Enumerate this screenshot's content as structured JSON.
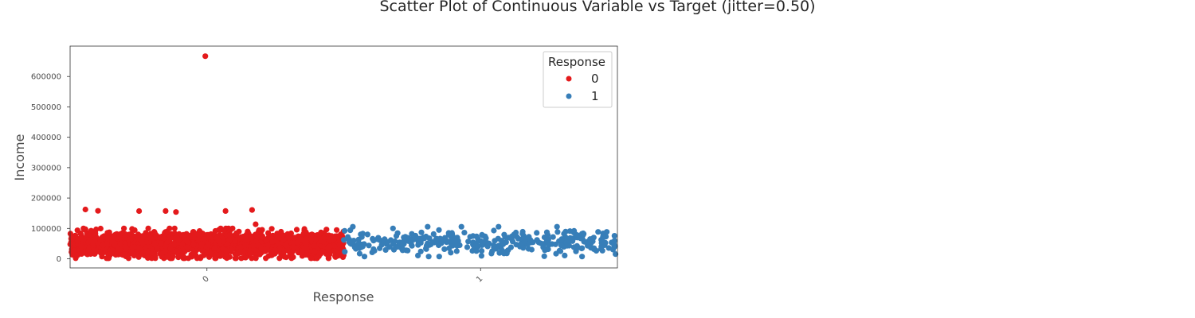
{
  "chart_data": {
    "type": "scatter",
    "title": "Scatter Plot of Continuous Variable vs Target (jitter=0.50)",
    "xlabel": "Response",
    "ylabel": "Income",
    "categories": [
      "0",
      "1"
    ],
    "xlim": [
      -0.5,
      1.5
    ],
    "ylim": [
      -30000,
      700000
    ],
    "yticks": [
      0,
      100000,
      200000,
      300000,
      400000,
      500000,
      600000
    ],
    "ytick_labels": [
      "0",
      "100000",
      "200000",
      "300000",
      "400000",
      "500000",
      "600000"
    ],
    "xtick_labels": [
      "0",
      "1"
    ],
    "jitter": 0.5,
    "grid": false,
    "legend": {
      "title": "Response",
      "placement": "top-right",
      "entries": [
        "0",
        "1"
      ]
    },
    "series": [
      {
        "name": "0",
        "color": "#e41a1c",
        "count": 1906,
        "x_range": [
          -0.5,
          0.5
        ],
        "y_range": [
          2000,
          100000
        ],
        "outliers": [
          [
            -0.006,
            666666
          ],
          [
            -0.444,
            162397
          ],
          [
            -0.398,
            157733
          ],
          [
            -0.248,
            157146
          ],
          [
            -0.151,
            157243
          ],
          [
            -0.113,
            153924
          ],
          [
            0.068,
            157243
          ],
          [
            0.165,
            160803
          ],
          [
            0.178,
            113734
          ]
        ]
      },
      {
        "name": "1",
        "color": "#377eb8",
        "count": 334,
        "x_range": [
          0.5,
          1.5
        ],
        "y_range": [
          7500,
          105471
        ],
        "outliers": []
      }
    ]
  }
}
